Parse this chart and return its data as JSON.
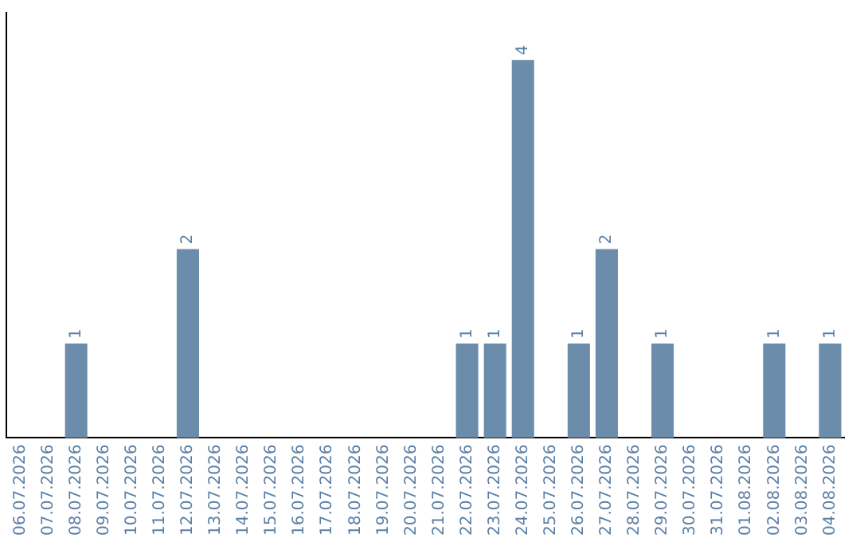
{
  "chart_data": {
    "type": "bar",
    "categories": [
      "06.07.2026",
      "07.07.2026",
      "08.07.2026",
      "09.07.2026",
      "10.07.2026",
      "11.07.2026",
      "12.07.2026",
      "13.07.2026",
      "14.07.2026",
      "15.07.2026",
      "16.07.2026",
      "17.07.2026",
      "18.07.2026",
      "19.07.2026",
      "20.07.2026",
      "21.07.2026",
      "22.07.2026",
      "23.07.2026",
      "24.07.2026",
      "25.07.2026",
      "26.07.2026",
      "27.07.2026",
      "28.07.2026",
      "29.07.2026",
      "30.07.2026",
      "31.07.2026",
      "01.08.2026",
      "02.08.2026",
      "03.08.2026",
      "04.08.2026"
    ],
    "values": [
      0,
      0,
      1,
      0,
      0,
      0,
      2,
      0,
      0,
      0,
      0,
      0,
      0,
      0,
      0,
      0,
      1,
      1,
      4,
      0,
      1,
      2,
      0,
      1,
      0,
      0,
      0,
      1,
      0,
      1
    ],
    "value_labels": [
      null,
      null,
      "1",
      null,
      null,
      null,
      "2",
      null,
      null,
      null,
      null,
      null,
      null,
      null,
      null,
      null,
      "1",
      "1",
      "4",
      null,
      "1",
      "2",
      null,
      "1",
      null,
      null,
      null,
      "1",
      null,
      "1"
    ],
    "color": "#6b8caa",
    "grid": false,
    "legend": false,
    "tick_labels": "x"
  }
}
